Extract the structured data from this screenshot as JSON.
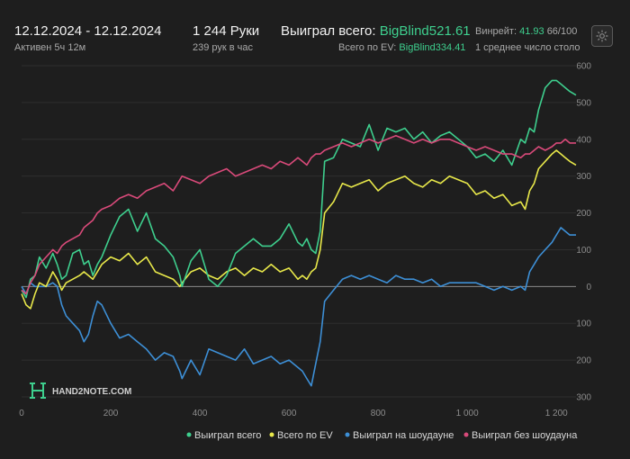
{
  "header": {
    "date_range": "12.12.2024 - 12.12.2024",
    "active": "Активен 5ч 12м",
    "hands": "1 244 Руки",
    "hands_per_hour": "239 рук в час",
    "won_label": "Выиграл всего:",
    "won_value": "BigBlind521.61",
    "ev_label": "Всего по EV:",
    "ev_value": "BigBlind334.41",
    "winrate_label": "Винрейт:",
    "winrate_value": "41.93",
    "winrate_rest": "66/100",
    "tables": "1 среднее число столо"
  },
  "watermark": {
    "text": "HAND2NOTE.COM",
    "colors": {
      "white": "#e6e6e6",
      "green": "#3ecf8e"
    }
  },
  "colors": {
    "background": "#1e1e1e",
    "grid": "#2e2e2e",
    "zero_line": "#8a8a8a",
    "accent": "#3ecf8e"
  },
  "chart_data": {
    "type": "line",
    "xlim": [
      0,
      1244
    ],
    "ylim": [
      -300,
      600
    ],
    "x_ticks": [
      0,
      200,
      400,
      600,
      800,
      1000,
      1200
    ],
    "x_tick_labels": [
      "0",
      "200",
      "400",
      "600",
      "800",
      "1 000",
      "1 200"
    ],
    "y_ticks": [
      600,
      500,
      400,
      300,
      200,
      100,
      0,
      -100,
      -200,
      -300
    ],
    "y_tick_labels": [
      "600",
      "500",
      "400",
      "300",
      "200",
      "100",
      "0",
      "100",
      "200",
      "300"
    ],
    "grid": true,
    "legend_position": "bottom-right",
    "series": [
      {
        "name": "Выиграл всего",
        "color": "#3ecf8e",
        "x": [
          0,
          10,
          20,
          30,
          40,
          55,
          70,
          80,
          90,
          100,
          115,
          130,
          140,
          150,
          160,
          170,
          180,
          200,
          220,
          240,
          260,
          280,
          300,
          320,
          340,
          355,
          360,
          380,
          400,
          420,
          440,
          460,
          480,
          500,
          520,
          540,
          560,
          580,
          600,
          620,
          630,
          640,
          650,
          660,
          670,
          680,
          700,
          720,
          740,
          760,
          780,
          800,
          820,
          840,
          860,
          880,
          900,
          920,
          940,
          960,
          980,
          1000,
          1020,
          1040,
          1060,
          1080,
          1100,
          1120,
          1130,
          1140,
          1150,
          1160,
          1175,
          1190,
          1200,
          1210,
          1220,
          1230,
          1244
        ],
        "values": [
          -10,
          -30,
          20,
          30,
          80,
          50,
          90,
          60,
          20,
          30,
          90,
          100,
          60,
          70,
          30,
          60,
          80,
          140,
          190,
          210,
          150,
          200,
          130,
          110,
          80,
          30,
          0,
          70,
          100,
          20,
          0,
          30,
          90,
          110,
          130,
          110,
          110,
          130,
          170,
          120,
          110,
          130,
          100,
          90,
          150,
          340,
          350,
          400,
          390,
          380,
          440,
          370,
          430,
          420,
          430,
          400,
          420,
          390,
          410,
          420,
          400,
          380,
          350,
          360,
          340,
          370,
          330,
          400,
          390,
          430,
          420,
          480,
          540,
          560,
          560,
          550,
          540,
          530,
          520
        ]
      },
      {
        "name": "Всего по EV",
        "color": "#e8e84a",
        "x": [
          0,
          10,
          20,
          30,
          40,
          55,
          70,
          80,
          90,
          100,
          115,
          130,
          140,
          150,
          160,
          170,
          180,
          200,
          220,
          240,
          260,
          280,
          300,
          320,
          340,
          355,
          360,
          380,
          400,
          420,
          440,
          460,
          480,
          500,
          520,
          540,
          560,
          580,
          600,
          620,
          630,
          640,
          650,
          660,
          670,
          680,
          700,
          720,
          740,
          760,
          780,
          800,
          820,
          840,
          860,
          880,
          900,
          920,
          940,
          960,
          980,
          1000,
          1020,
          1040,
          1060,
          1080,
          1100,
          1120,
          1130,
          1140,
          1150,
          1160,
          1175,
          1190,
          1200,
          1210,
          1220,
          1230,
          1244
        ],
        "values": [
          -20,
          -50,
          -60,
          -20,
          10,
          0,
          40,
          20,
          -10,
          10,
          20,
          30,
          40,
          30,
          20,
          40,
          60,
          80,
          70,
          90,
          60,
          80,
          40,
          30,
          20,
          0,
          10,
          40,
          50,
          30,
          20,
          40,
          50,
          30,
          50,
          40,
          60,
          40,
          50,
          20,
          30,
          20,
          40,
          50,
          100,
          200,
          230,
          280,
          270,
          280,
          290,
          260,
          280,
          290,
          300,
          280,
          270,
          290,
          280,
          300,
          290,
          280,
          250,
          260,
          240,
          250,
          220,
          230,
          210,
          260,
          280,
          320,
          340,
          360,
          370,
          360,
          350,
          340,
          330
        ]
      },
      {
        "name": "Выиграл на шоудауне",
        "color": "#3d8fd6",
        "x": [
          0,
          10,
          20,
          30,
          40,
          55,
          70,
          80,
          90,
          100,
          115,
          130,
          140,
          150,
          160,
          170,
          180,
          200,
          220,
          240,
          260,
          280,
          300,
          320,
          340,
          355,
          360,
          380,
          400,
          420,
          440,
          460,
          480,
          500,
          520,
          540,
          560,
          580,
          600,
          620,
          630,
          640,
          650,
          660,
          670,
          680,
          700,
          720,
          740,
          760,
          780,
          800,
          820,
          840,
          860,
          880,
          900,
          920,
          940,
          960,
          980,
          1000,
          1020,
          1040,
          1060,
          1080,
          1100,
          1120,
          1130,
          1140,
          1150,
          1160,
          1175,
          1190,
          1200,
          1210,
          1220,
          1230,
          1244
        ],
        "values": [
          0,
          -20,
          10,
          0,
          0,
          0,
          10,
          0,
          -50,
          -80,
          -100,
          -120,
          -150,
          -130,
          -80,
          -40,
          -50,
          -100,
          -140,
          -130,
          -150,
          -170,
          -200,
          -180,
          -190,
          -230,
          -250,
          -200,
          -240,
          -170,
          -180,
          -190,
          -200,
          -170,
          -210,
          -200,
          -190,
          -210,
          -200,
          -220,
          -230,
          -250,
          -270,
          -210,
          -150,
          -40,
          -10,
          20,
          30,
          20,
          30,
          20,
          10,
          30,
          20,
          20,
          10,
          20,
          0,
          10,
          10,
          10,
          10,
          0,
          -10,
          0,
          -10,
          0,
          -10,
          40,
          60,
          80,
          100,
          120,
          140,
          160,
          150,
          140,
          140
        ]
      },
      {
        "name": "Выиграл без шоудауна",
        "color": "#d94a7a",
        "x": [
          0,
          10,
          20,
          30,
          40,
          55,
          70,
          80,
          90,
          100,
          115,
          130,
          140,
          150,
          160,
          170,
          180,
          200,
          220,
          240,
          260,
          280,
          300,
          320,
          340,
          355,
          360,
          380,
          400,
          420,
          440,
          460,
          480,
          500,
          520,
          540,
          560,
          580,
          600,
          620,
          630,
          640,
          650,
          660,
          670,
          680,
          700,
          720,
          740,
          760,
          780,
          800,
          820,
          840,
          860,
          880,
          900,
          920,
          940,
          960,
          980,
          1000,
          1020,
          1040,
          1060,
          1080,
          1100,
          1120,
          1130,
          1140,
          1150,
          1160,
          1175,
          1190,
          1200,
          1210,
          1220,
          1230,
          1244
        ],
        "values": [
          -10,
          -20,
          10,
          30,
          60,
          80,
          100,
          90,
          110,
          120,
          130,
          140,
          160,
          170,
          180,
          200,
          210,
          220,
          240,
          250,
          240,
          260,
          270,
          280,
          260,
          290,
          300,
          290,
          280,
          300,
          310,
          320,
          300,
          310,
          320,
          330,
          320,
          340,
          330,
          350,
          340,
          330,
          350,
          360,
          360,
          370,
          380,
          390,
          380,
          390,
          400,
          390,
          400,
          410,
          400,
          390,
          400,
          390,
          400,
          400,
          390,
          380,
          370,
          380,
          370,
          360,
          360,
          350,
          360,
          360,
          370,
          380,
          370,
          380,
          390,
          390,
          400,
          390,
          390
        ]
      }
    ]
  }
}
